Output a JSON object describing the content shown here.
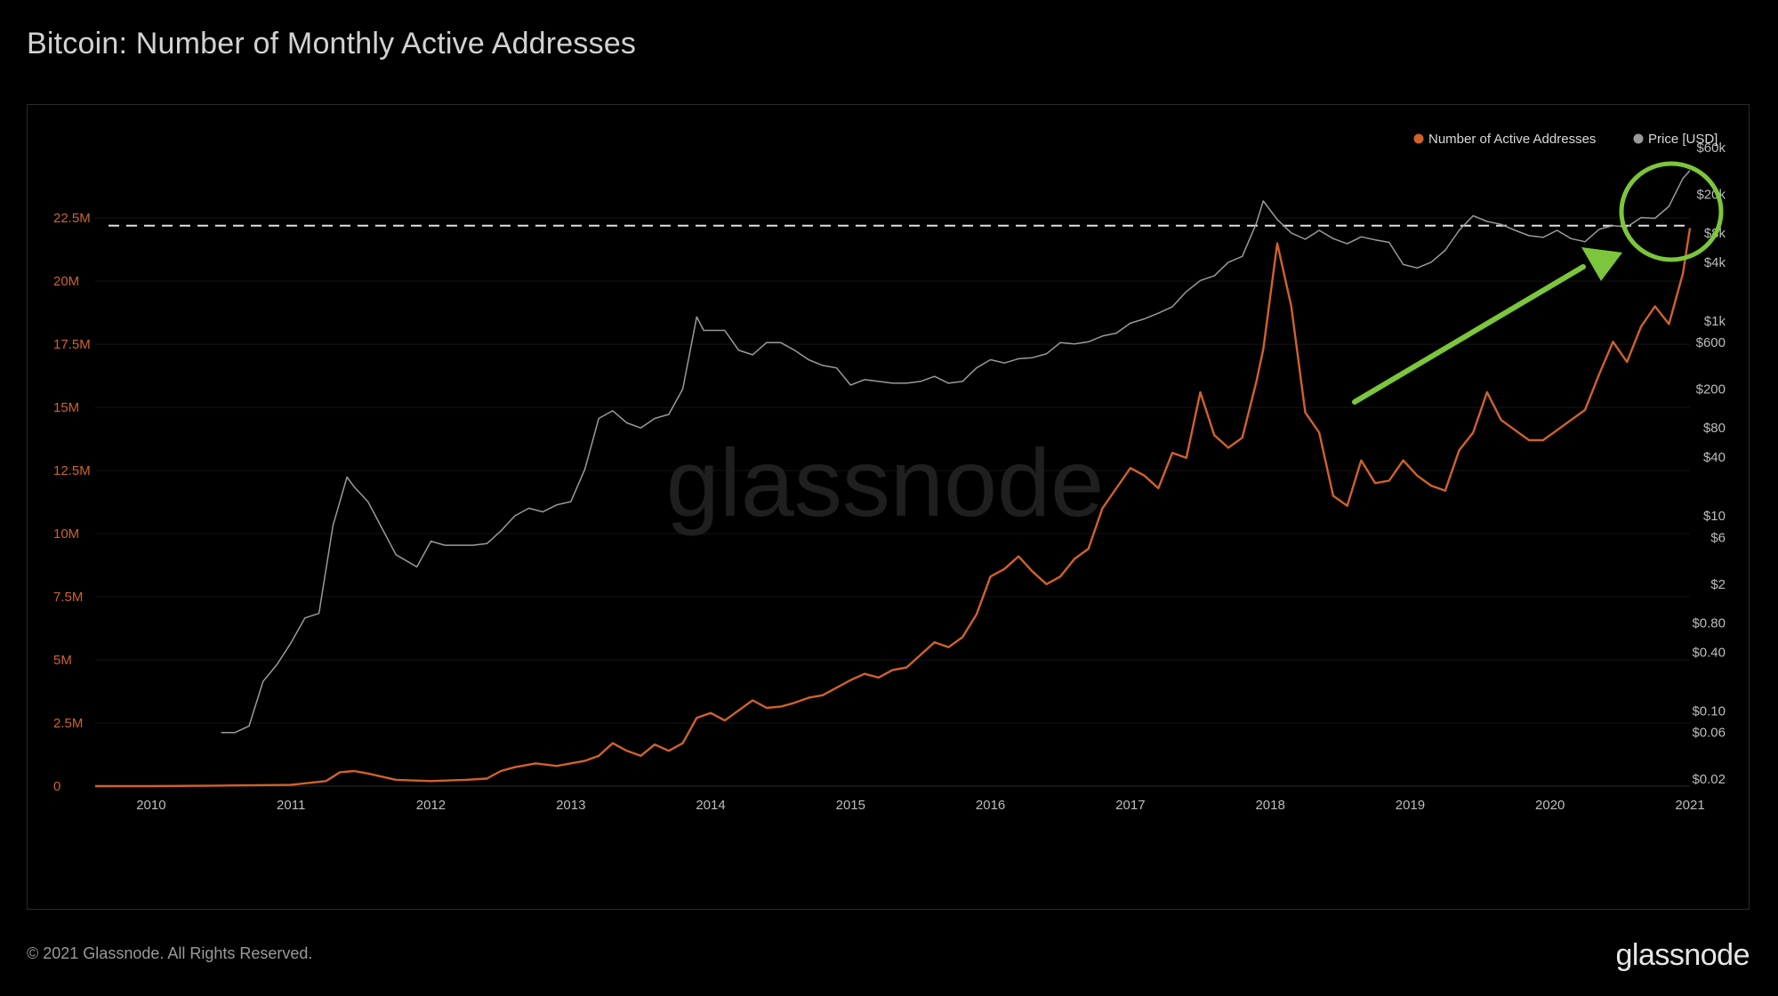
{
  "page": {
    "title": "Bitcoin: Number of Monthly Active Addresses",
    "footer": "© 2021 Glassnode. All Rights Reserved.",
    "brand": "glassnode",
    "watermark": "glassnode"
  },
  "chart_data": {
    "type": "line",
    "title": "Bitcoin: Number of Monthly Active Addresses",
    "x_ticks": [
      "2010",
      "2011",
      "2012",
      "2013",
      "2014",
      "2015",
      "2016",
      "2017",
      "2018",
      "2019",
      "2020",
      "2021"
    ],
    "x_range": [
      2009.6,
      2021.0
    ],
    "left_axis": {
      "ticks": [
        "0",
        "2.5M",
        "5M",
        "7.5M",
        "10M",
        "12.5M",
        "15M",
        "17.5M",
        "20M",
        "22.5M"
      ],
      "tick_values": [
        0,
        2.5,
        5,
        7.5,
        10,
        12.5,
        15,
        17.5,
        20,
        22.5
      ],
      "range": [
        0,
        25.5
      ],
      "unit": "millions",
      "color": "#d0622b"
    },
    "right_axis": {
      "scale": "log",
      "ticks": [
        "$0.02",
        "$0.06",
        "$0.10",
        "$0.40",
        "$0.80",
        "$2",
        "$6",
        "$10",
        "$40",
        "$80",
        "$200",
        "$600",
        "$1k",
        "$4k",
        "$8k",
        "$20k",
        "$60k"
      ],
      "tick_values": [
        0.02,
        0.06,
        0.1,
        0.4,
        0.8,
        2,
        6,
        10,
        40,
        80,
        200,
        600,
        1000,
        4000,
        8000,
        20000,
        60000
      ],
      "color": "#bcbcbc"
    },
    "legend": {
      "placement": "top-right",
      "items": [
        {
          "label": "Number of Active Addresses",
          "color": "#d0622b"
        },
        {
          "label": "Price [USD]",
          "color": "#9a9a9a"
        }
      ]
    },
    "reference_line": {
      "value": 22.2,
      "style": "dashed",
      "color": "#e0e0e0"
    },
    "annotation": {
      "type": "arrow-and-circle",
      "color": "#7cc63b",
      "target": "2021 high"
    },
    "series": [
      {
        "name": "Number of Active Addresses",
        "axis": "left",
        "color": "#d0622b",
        "x": [
          2009.6,
          2010.0,
          2010.5,
          2011.0,
          2011.25,
          2011.35,
          2011.45,
          2011.55,
          2011.75,
          2012.0,
          2012.25,
          2012.4,
          2012.5,
          2012.6,
          2012.75,
          2012.9,
          2013.0,
          2013.1,
          2013.2,
          2013.3,
          2013.4,
          2013.5,
          2013.6,
          2013.7,
          2013.8,
          2013.9,
          2014.0,
          2014.1,
          2014.2,
          2014.3,
          2014.4,
          2014.5,
          2014.6,
          2014.7,
          2014.8,
          2014.9,
          2015.0,
          2015.1,
          2015.2,
          2015.3,
          2015.4,
          2015.5,
          2015.6,
          2015.7,
          2015.8,
          2015.9,
          2016.0,
          2016.1,
          2016.2,
          2016.3,
          2016.4,
          2016.5,
          2016.6,
          2016.7,
          2016.8,
          2016.9,
          2017.0,
          2017.1,
          2017.2,
          2017.3,
          2017.4,
          2017.5,
          2017.6,
          2017.7,
          2017.8,
          2017.9,
          2017.95,
          2018.05,
          2018.15,
          2018.25,
          2018.35,
          2018.45,
          2018.55,
          2018.65,
          2018.75,
          2018.85,
          2018.95,
          2019.05,
          2019.15,
          2019.25,
          2019.35,
          2019.45,
          2019.55,
          2019.65,
          2019.75,
          2019.85,
          2019.95,
          2020.05,
          2020.15,
          2020.25,
          2020.35,
          2020.45,
          2020.55,
          2020.65,
          2020.75,
          2020.85,
          2020.95,
          2021.0
        ],
        "values": [
          0,
          0,
          0.02,
          0.05,
          0.2,
          0.55,
          0.6,
          0.5,
          0.25,
          0.2,
          0.25,
          0.3,
          0.6,
          0.75,
          0.9,
          0.8,
          0.9,
          1.0,
          1.2,
          1.7,
          1.4,
          1.2,
          1.65,
          1.4,
          1.7,
          2.7,
          2.9,
          2.6,
          3.0,
          3.4,
          3.1,
          3.15,
          3.3,
          3.5,
          3.6,
          3.9,
          4.2,
          4.45,
          4.3,
          4.6,
          4.7,
          5.2,
          5.7,
          5.5,
          5.9,
          6.8,
          8.3,
          8.6,
          9.1,
          8.5,
          8.0,
          8.3,
          9.0,
          9.4,
          11.0,
          11.8,
          12.6,
          12.3,
          11.8,
          13.2,
          13.0,
          15.6,
          13.9,
          13.4,
          13.8,
          16.0,
          17.3,
          21.5,
          19.0,
          14.8,
          14.0,
          11.5,
          11.1,
          12.9,
          12.0,
          12.1,
          12.9,
          12.3,
          11.9,
          11.7,
          13.3,
          14.0,
          15.6,
          14.5,
          14.1,
          13.7,
          13.7,
          14.1,
          14.5,
          14.9,
          16.3,
          17.6,
          16.8,
          18.2,
          19.0,
          18.3,
          20.3,
          22.1
        ]
      },
      {
        "name": "Price [USD]",
        "axis": "right",
        "color": "#9a9a9a",
        "x": [
          2010.5,
          2010.6,
          2010.7,
          2010.8,
          2010.9,
          2011.0,
          2011.1,
          2011.2,
          2011.3,
          2011.4,
          2011.45,
          2011.55,
          2011.75,
          2011.9,
          2012.0,
          2012.1,
          2012.2,
          2012.3,
          2012.4,
          2012.5,
          2012.6,
          2012.7,
          2012.8,
          2012.9,
          2013.0,
          2013.1,
          2013.2,
          2013.3,
          2013.4,
          2013.5,
          2013.6,
          2013.7,
          2013.8,
          2013.9,
          2013.95,
          2014.1,
          2014.2,
          2014.3,
          2014.4,
          2014.5,
          2014.6,
          2014.7,
          2014.8,
          2014.9,
          2015.0,
          2015.1,
          2015.2,
          2015.3,
          2015.4,
          2015.5,
          2015.6,
          2015.7,
          2015.8,
          2015.9,
          2016.0,
          2016.1,
          2016.2,
          2016.3,
          2016.4,
          2016.5,
          2016.6,
          2016.7,
          2016.8,
          2016.9,
          2017.0,
          2017.1,
          2017.2,
          2017.3,
          2017.4,
          2017.5,
          2017.6,
          2017.7,
          2017.8,
          2017.9,
          2017.95,
          2018.05,
          2018.15,
          2018.25,
          2018.35,
          2018.45,
          2018.55,
          2018.65,
          2018.75,
          2018.85,
          2018.95,
          2019.05,
          2019.15,
          2019.25,
          2019.35,
          2019.45,
          2019.55,
          2019.65,
          2019.75,
          2019.85,
          2019.95,
          2020.05,
          2020.15,
          2020.25,
          2020.35,
          2020.45,
          2020.55,
          2020.65,
          2020.75,
          2020.85,
          2020.95,
          2021.0
        ],
        "values": [
          0.06,
          0.06,
          0.07,
          0.2,
          0.3,
          0.5,
          0.9,
          1.0,
          8.0,
          25,
          20,
          14,
          4,
          3,
          5.5,
          5,
          5,
          5,
          5.2,
          7,
          10,
          12,
          11,
          13,
          14,
          30,
          100,
          120,
          90,
          80,
          100,
          110,
          200,
          1100,
          800,
          800,
          500,
          450,
          600,
          600,
          500,
          400,
          350,
          330,
          220,
          250,
          240,
          230,
          230,
          240,
          270,
          230,
          240,
          330,
          400,
          370,
          410,
          420,
          460,
          600,
          580,
          610,
          700,
          750,
          950,
          1050,
          1200,
          1400,
          2000,
          2600,
          2900,
          4000,
          4600,
          10000,
          17000,
          11000,
          8000,
          6900,
          8500,
          7000,
          6200,
          7300,
          6800,
          6400,
          3800,
          3500,
          4000,
          5300,
          8500,
          12000,
          10500,
          9800,
          8500,
          7500,
          7200,
          8500,
          7000,
          6500,
          8700,
          9500,
          9200,
          11500,
          11300,
          15000,
          29000,
          35000
        ]
      }
    ]
  }
}
